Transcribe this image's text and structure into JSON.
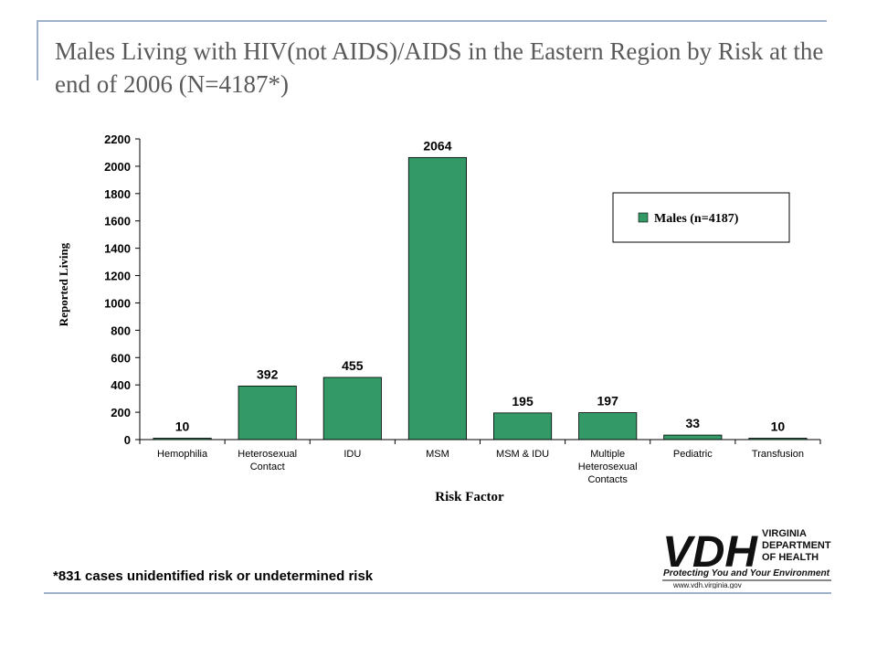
{
  "slide": {
    "title": "Males Living with HIV(not AIDS)/AIDS in the Eastern Region by Risk at the end of 2006 (N=4187*)",
    "footnote": "*831 cases unidentified risk or undetermined risk"
  },
  "logo": {
    "mark": "VDH",
    "line1": "VIRGINIA",
    "line2": "DEPARTMENT",
    "line3": "OF HEALTH",
    "tagline": "Protecting You and Your Environment",
    "url": "www.vdh.virginia.gov"
  },
  "chart_data": {
    "type": "bar",
    "categories": [
      "Hemophilia",
      "Heterosexual Contact",
      "IDU",
      "MSM",
      "MSM & IDU",
      "Multiple Heterosexual Contacts",
      "Pediatric",
      "Transfusion"
    ],
    "category_lines": [
      [
        "Hemophilia"
      ],
      [
        "Heterosexual",
        "Contact"
      ],
      [
        "IDU"
      ],
      [
        "MSM"
      ],
      [
        "MSM & IDU"
      ],
      [
        "Multiple",
        "Heterosexual",
        "Contacts"
      ],
      [
        "Pediatric"
      ],
      [
        "Transfusion"
      ]
    ],
    "series": [
      {
        "name": "Males (n=4187)",
        "values": [
          10,
          392,
          455,
          2064,
          195,
          197,
          33,
          10
        ]
      }
    ],
    "ylim": [
      0,
      2200
    ],
    "yticks": [
      0,
      200,
      400,
      600,
      800,
      1000,
      1200,
      1400,
      1600,
      1800,
      2000,
      2200
    ],
    "xlabel": "Risk Factor",
    "ylabel": "Reported Living",
    "grid": false,
    "legend_position": "top-right",
    "bar_color": "#339966"
  }
}
